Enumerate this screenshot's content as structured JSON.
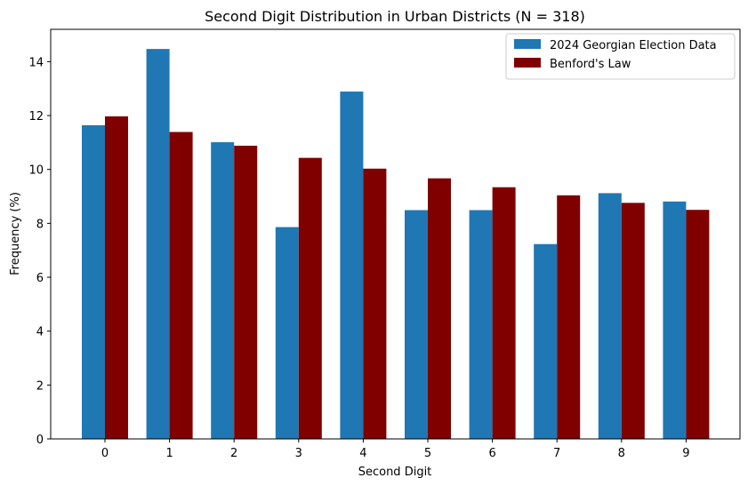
{
  "chart_data": {
    "type": "bar",
    "title": "Second Digit Distribution in Urban Districts (N = 318)",
    "xlabel": "Second Digit",
    "ylabel": "Frequency (%)",
    "categories": [
      "0",
      "1",
      "2",
      "3",
      "4",
      "5",
      "6",
      "7",
      "8",
      "9"
    ],
    "series": [
      {
        "name": "2024 Georgian Election Data",
        "color": "#1f77b4",
        "values": [
          11.64,
          14.47,
          11.01,
          7.86,
          12.89,
          8.49,
          8.49,
          7.23,
          9.12,
          8.81
        ]
      },
      {
        "name": "Benford's Law",
        "color": "#800000",
        "values": [
          11.97,
          11.39,
          10.88,
          10.43,
          10.03,
          9.67,
          9.34,
          9.04,
          8.76,
          8.5
        ]
      }
    ],
    "ylim": [
      0,
      15.2
    ],
    "yticks": [
      0,
      2,
      4,
      6,
      8,
      10,
      12,
      14
    ],
    "legend_position": "top-right",
    "grid": false
  }
}
